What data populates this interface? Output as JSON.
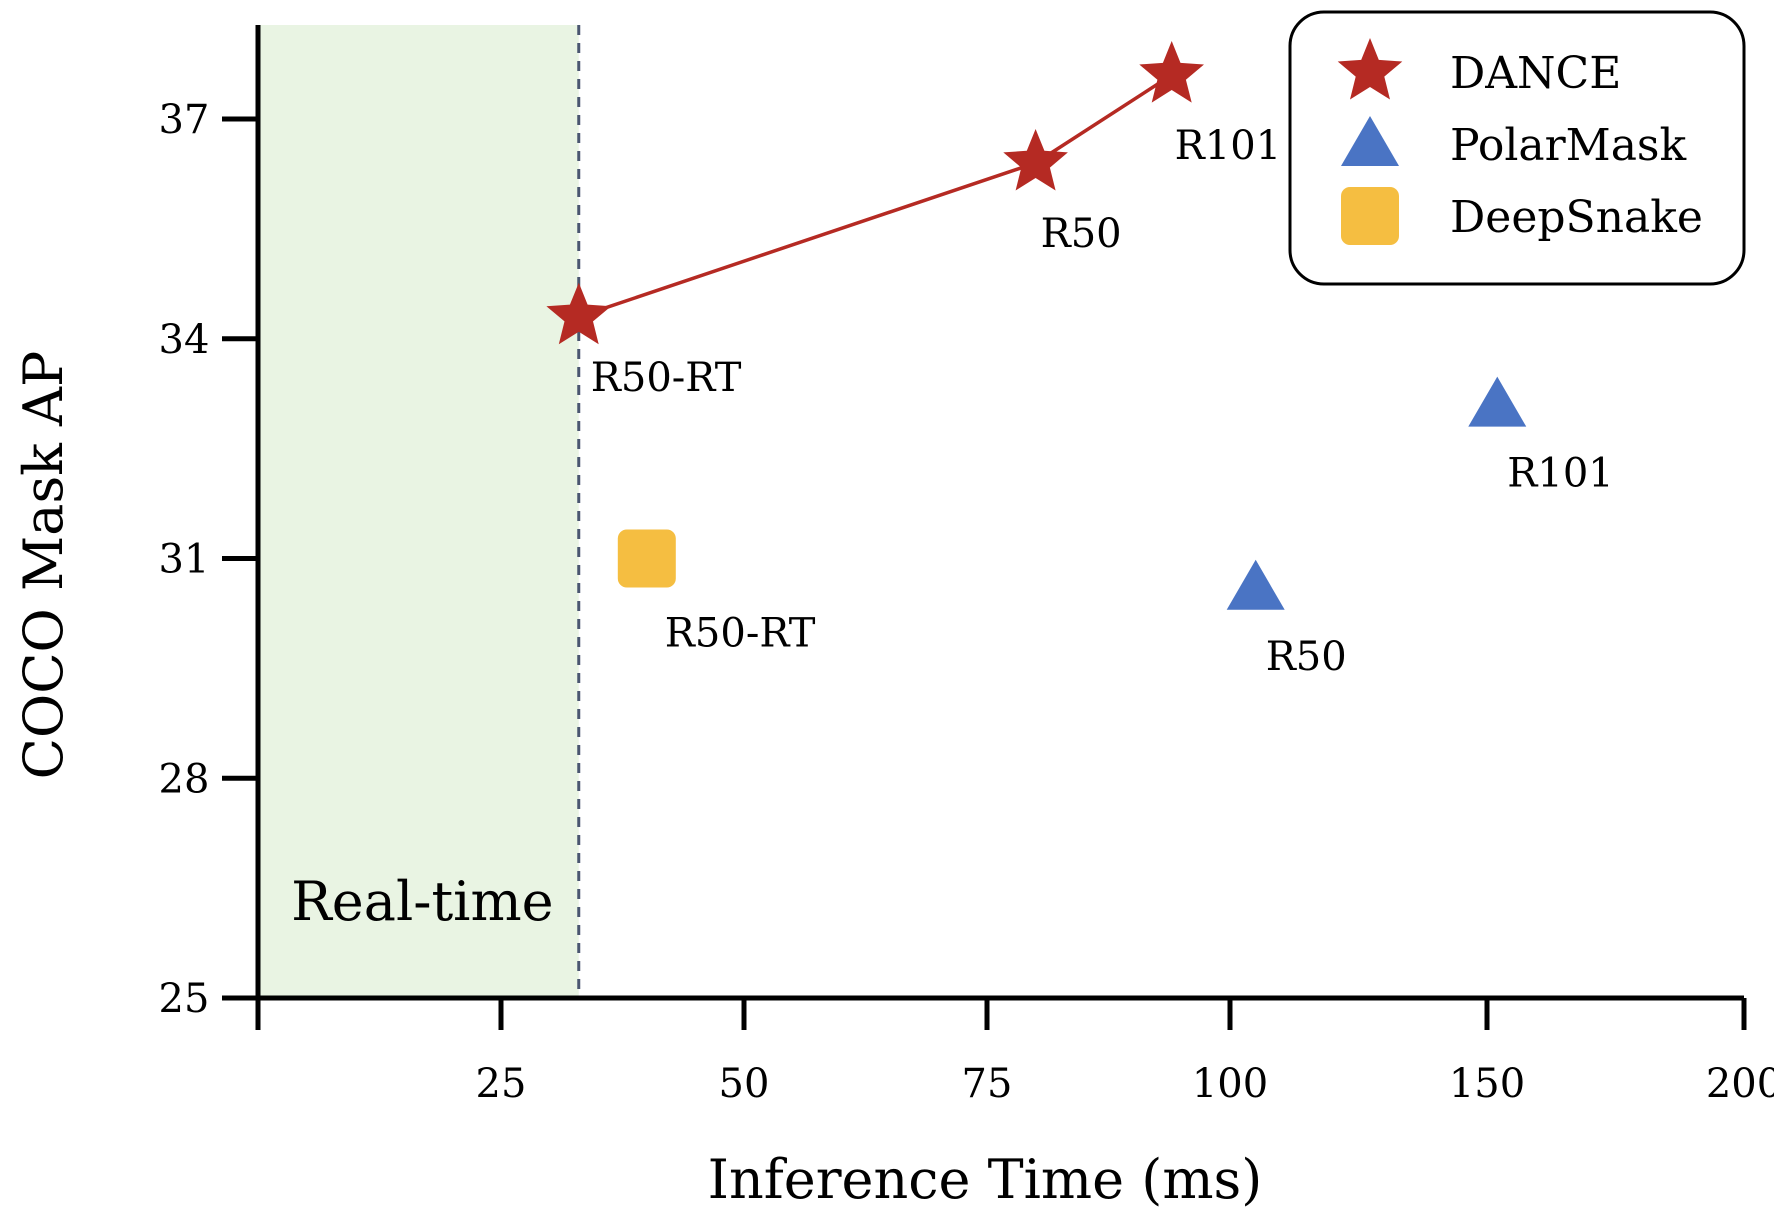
{
  "chart_data": {
    "type": "scatter",
    "xlabel": "Inference Time (ms)",
    "ylabel": "COCO Mask AP",
    "x_ticks": [
      "25",
      "50",
      "75",
      "100",
      "150",
      "200"
    ],
    "y_ticks": [
      25,
      28,
      31,
      34,
      37
    ],
    "xlim": [
      0,
      200
    ],
    "ylim": [
      25,
      38.2
    ],
    "x_scale": "piecewise: linear 0-100, compressed 100-200",
    "grid": false,
    "legend_position": "top-right",
    "realtime_region": {
      "label": "Real-time",
      "x_max": 33
    },
    "series": [
      {
        "name": "DANCE",
        "marker": "star",
        "color": "#b52a23",
        "connected": true,
        "points": [
          {
            "x": 33,
            "y": 34.3,
            "label": "R50-RT"
          },
          {
            "x": 80,
            "y": 36.4,
            "label": "R50"
          },
          {
            "x": 94,
            "y": 37.6,
            "label": "R101"
          }
        ]
      },
      {
        "name": "PolarMask",
        "marker": "triangle",
        "color": "#4a74c4",
        "connected": false,
        "points": [
          {
            "x": 105,
            "y": 30.6,
            "label": "R50"
          },
          {
            "x": 152,
            "y": 33.1,
            "label": "R101"
          }
        ]
      },
      {
        "name": "DeepSnake",
        "marker": "square",
        "color": "#f5be41",
        "connected": false,
        "points": [
          {
            "x": 40,
            "y": 31.0,
            "label": "R50-RT"
          }
        ]
      }
    ]
  }
}
